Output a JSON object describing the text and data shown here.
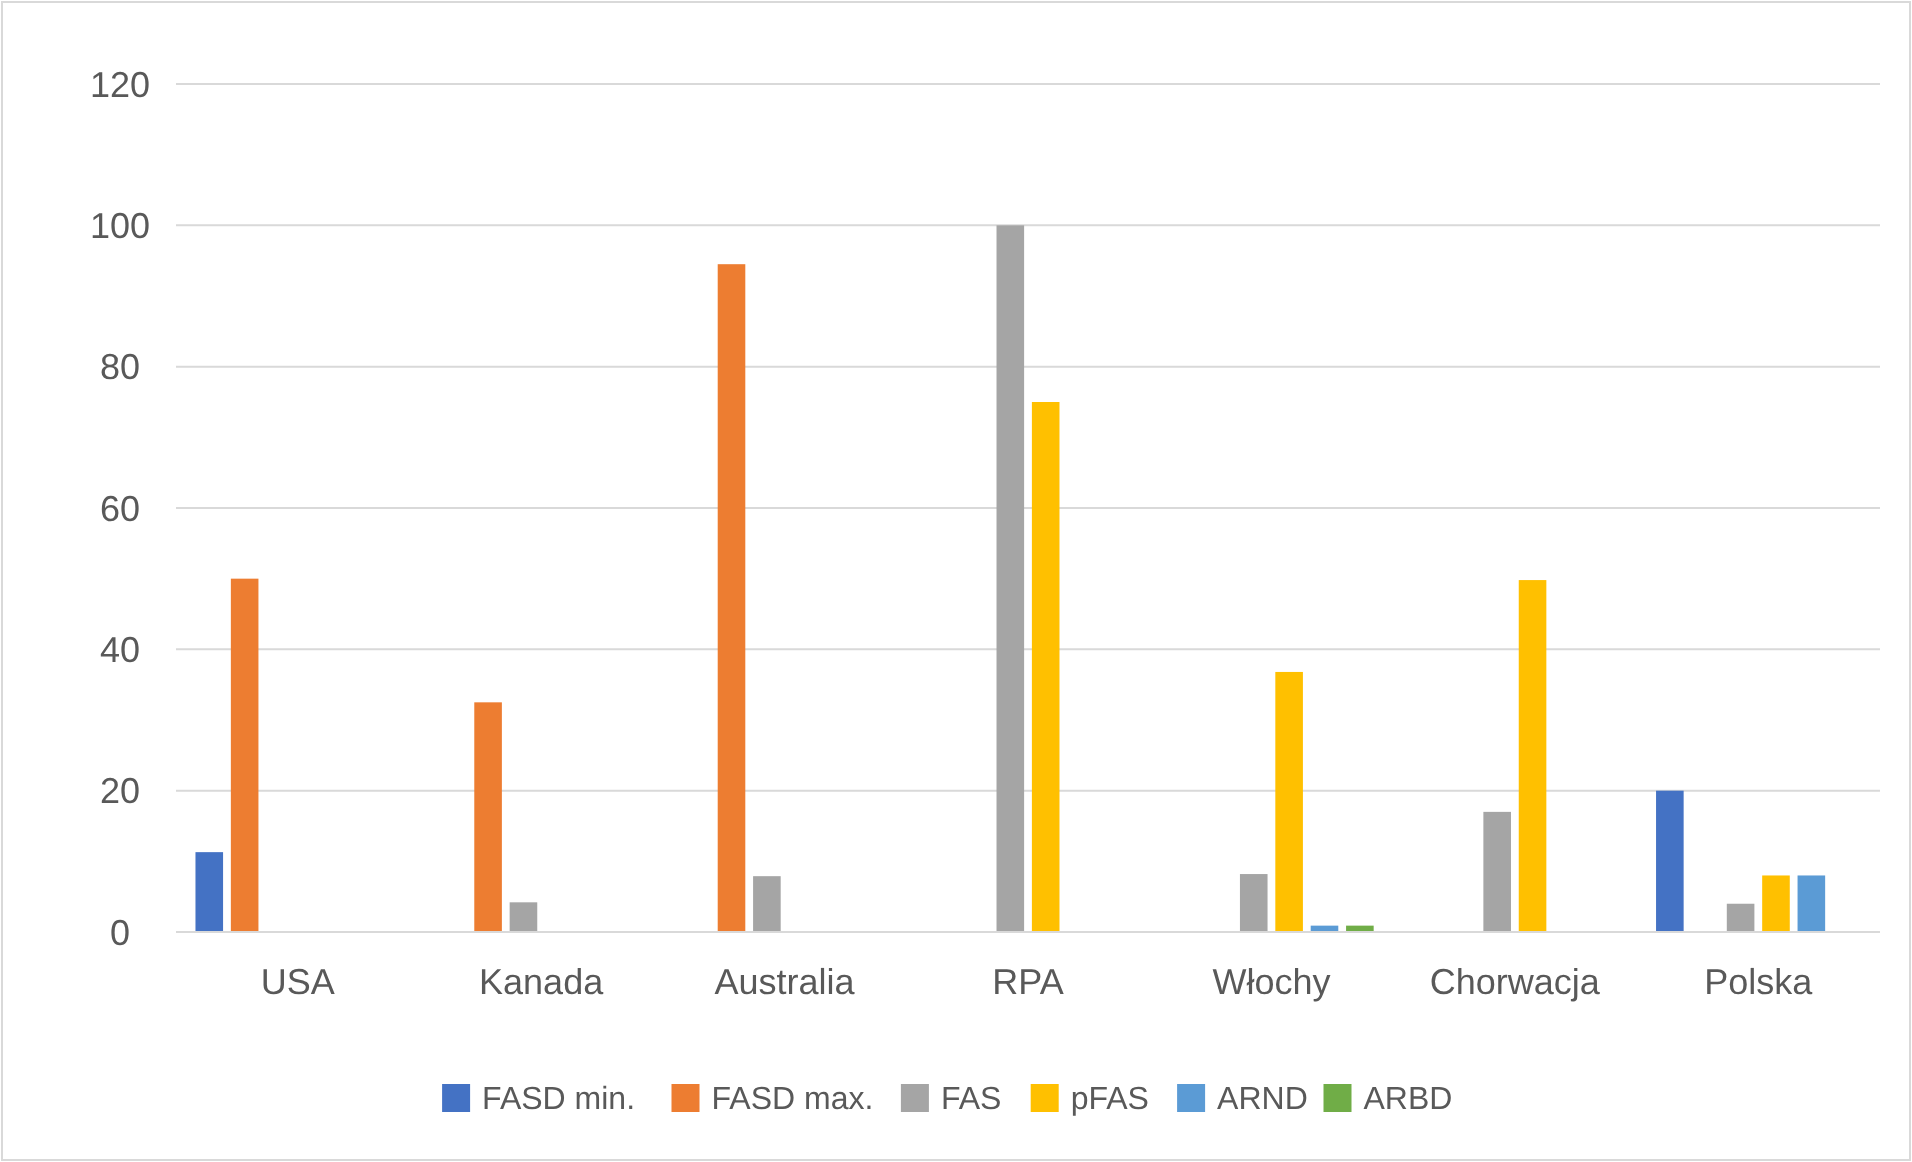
{
  "chart_data": {
    "type": "bar",
    "categories": [
      "USA",
      "Kanada",
      "Australia",
      "RPA",
      "Włochy",
      "Chorwacja",
      "Polska"
    ],
    "series": [
      {
        "name": "FASD min.",
        "color": "#4472c4",
        "values": [
          11.3,
          null,
          null,
          null,
          null,
          null,
          20
        ]
      },
      {
        "name": "FASD max.",
        "color": "#ed7d31",
        "values": [
          50,
          32.5,
          94.5,
          null,
          null,
          null,
          null
        ]
      },
      {
        "name": "FAS",
        "color": "#a5a5a5",
        "values": [
          null,
          4.2,
          7.9,
          100,
          8.2,
          17,
          4
        ]
      },
      {
        "name": "pFAS",
        "color": "#ffc000",
        "values": [
          null,
          null,
          null,
          75,
          36.8,
          49.8,
          8
        ]
      },
      {
        "name": "ARND",
        "color": "#5b9bd5",
        "values": [
          null,
          null,
          null,
          null,
          0.9,
          null,
          8
        ]
      },
      {
        "name": "ARBD",
        "color": "#70ad47",
        "values": [
          null,
          null,
          null,
          null,
          0.9,
          null,
          null
        ]
      }
    ],
    "ylim": [
      0,
      120
    ],
    "yticks": [
      0,
      20,
      40,
      60,
      80,
      100,
      120
    ],
    "grid": "y",
    "legend": "bottom"
  }
}
